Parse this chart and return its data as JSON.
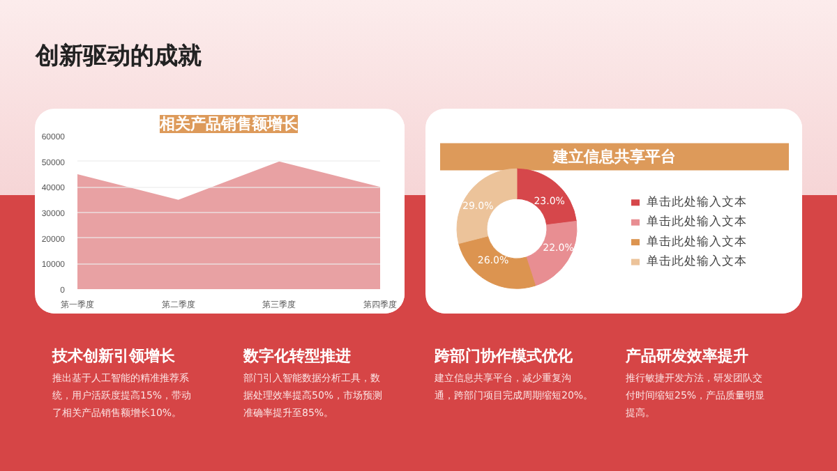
{
  "chart_data": [
    {
      "type": "area",
      "title": "相关产品销售额增长",
      "categories": [
        "第一季度",
        "第二季度",
        "第三季度",
        "第四季度"
      ],
      "values": [
        45000,
        35000,
        50000,
        40000
      ],
      "color": "#e8a1a3",
      "ylim": [
        0,
        60000
      ],
      "yticks": [
        0,
        10000,
        20000,
        30000,
        40000,
        50000,
        60000
      ],
      "grid": "y"
    },
    {
      "type": "donut",
      "title": "建立信息共享平台",
      "categories": [
        "单击此处输入文本",
        "单击此处输入文本",
        "单击此处输入文本",
        "单击此处输入文本"
      ],
      "values": [
        23.0,
        22.0,
        26.0,
        29.0
      ],
      "colors": [
        "#d6474b",
        "#e88e92",
        "#dc9450",
        "#ecc39a"
      ],
      "value_labels": [
        "23.0%",
        "22.0%",
        "26.0%",
        "29.0%"
      ],
      "legend": "right"
    },
    {
      "type": "other",
      "title": "创新驱动的成就",
      "annotations": [
        "技术创新引领增长",
        "推出基于人工智能的精准推荐系统，用户活跃度提高15%，带动了相关产品销售额增长10%。",
        "数字化转型推进",
        "部门引入智能数据分析工具，数据处理效率提高50%，市场预测准确率提升至85%。",
        "跨部门协作模式优化",
        "建立信息共享平台，减少重复沟通，跨部门项目完成周期缩短20%。",
        "产品研发效率提升",
        "推行敏捷开发方法，研发团队交付时间缩短25%，产品质量明显提高。"
      ]
    }
  ]
}
